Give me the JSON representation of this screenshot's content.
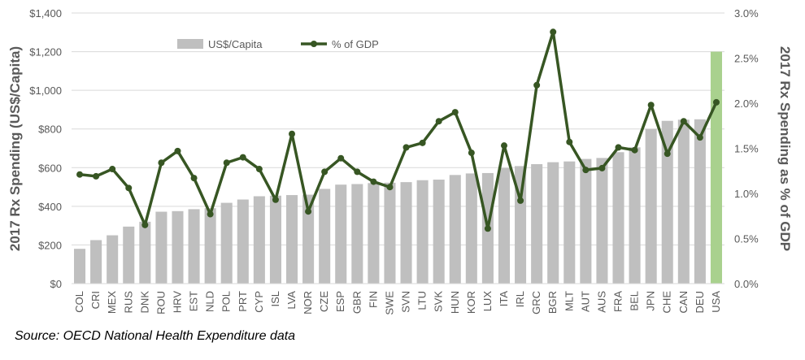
{
  "chart_data": {
    "type": "bar+line",
    "categories": [
      "COL",
      "CRI",
      "MEX",
      "RUS",
      "DNK",
      "ROU",
      "HRV",
      "EST",
      "NLD",
      "POL",
      "PRT",
      "CYP",
      "ISL",
      "LVA",
      "NOR",
      "CZE",
      "ESP",
      "GBR",
      "FIN",
      "SWE",
      "SVN",
      "LTU",
      "SVK",
      "HUN",
      "KOR",
      "LUX",
      "ITA",
      "IRL",
      "GRC",
      "BGR",
      "MLT",
      "AUT",
      "AUS",
      "FRA",
      "BEL",
      "JPN",
      "CHE",
      "CAN",
      "DEU",
      "USA"
    ],
    "series": [
      {
        "name": "US$/Capita",
        "type": "bar",
        "axis": "left",
        "color": "#bfbfbf",
        "values": [
          180,
          225,
          250,
          295,
          320,
          372,
          375,
          385,
          390,
          418,
          435,
          452,
          455,
          458,
          460,
          490,
          512,
          515,
          520,
          522,
          525,
          535,
          538,
          562,
          570,
          572,
          598,
          608,
          618,
          628,
          632,
          645,
          650,
          680,
          705,
          800,
          842,
          848,
          850,
          1200
        ]
      },
      {
        "name": "% of GDP",
        "type": "line",
        "axis": "right",
        "color": "#375623",
        "values": [
          1.21,
          1.19,
          1.27,
          1.06,
          0.65,
          1.34,
          1.47,
          1.17,
          0.77,
          1.34,
          1.4,
          1.27,
          0.93,
          1.66,
          0.8,
          1.24,
          1.39,
          1.24,
          1.13,
          1.07,
          1.51,
          1.56,
          1.8,
          1.9,
          1.45,
          0.61,
          1.53,
          0.92,
          2.2,
          2.79,
          1.57,
          1.26,
          1.28,
          1.51,
          1.48,
          1.98,
          1.44,
          1.8,
          1.62,
          2.01
        ]
      }
    ],
    "highlight": {
      "category": "USA",
      "color": "#a9d18e"
    },
    "y_left": {
      "label": "2017 Rx Spending (US$/Capita)",
      "lim": [
        0,
        1400
      ],
      "ticks": [
        "$0",
        "$200",
        "$400",
        "$600",
        "$800",
        "$1,000",
        "$1,200",
        "$1,400"
      ]
    },
    "y_right": {
      "label": "2017 Rx Spending as % of GDP",
      "lim": [
        0,
        3.0
      ],
      "ticks": [
        "0.0%",
        "0.5%",
        "1.0%",
        "1.5%",
        "2.0%",
        "2.5%",
        "3.0%"
      ]
    },
    "legend": {
      "placement": "top-left",
      "items": [
        "US$/Capita",
        "% of GDP"
      ]
    },
    "grid": true
  },
  "source_note": "Source: OECD National Health Expenditure data"
}
